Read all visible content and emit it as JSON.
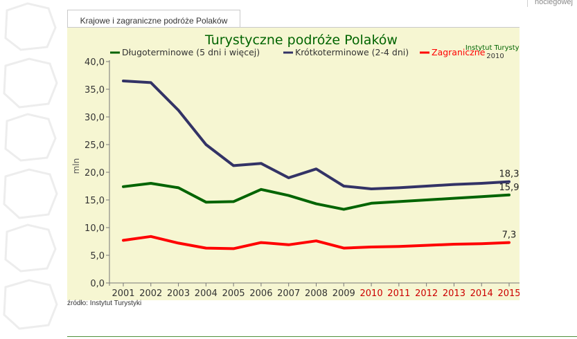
{
  "page": {
    "top_right_text": "noclegowej",
    "tab_label": "Krajowe i zagraniczne podróże Polaków",
    "source_note": "źródło: Instytut Turystyki"
  },
  "chart_data": {
    "type": "line",
    "title": "Turystyczne podróże Polaków",
    "annotation": [
      "Instytut Turystyki",
      "2010"
    ],
    "xlabel": "",
    "ylabel": "mln",
    "x": [
      "2001",
      "2002",
      "2003",
      "2004",
      "2005",
      "2006",
      "2007",
      "2008",
      "2009",
      "2010",
      "2011",
      "2012",
      "2013",
      "2014",
      "2015"
    ],
    "x_highlight_from": "2010",
    "ylim": [
      0,
      40
    ],
    "yticks": [
      "0,0",
      "5,0",
      "10,0",
      "15,0",
      "20,0",
      "25,0",
      "30,0",
      "35,0",
      "40,0"
    ],
    "ytick_values": [
      0,
      5,
      10,
      15,
      20,
      25,
      30,
      35,
      40
    ],
    "grid": false,
    "legend_position": "top",
    "series": [
      {
        "name": "Długoterminowe (5 dni i więcej)",
        "color": "#006400",
        "values": [
          17.4,
          18.0,
          17.2,
          14.6,
          14.7,
          16.9,
          15.8,
          14.3,
          13.3,
          14.4,
          14.7,
          15.0,
          15.3,
          15.6,
          15.9
        ],
        "end_label": "15,9"
      },
      {
        "name": "Krótkoterminowe (2-4 dni)",
        "color": "#333366",
        "values": [
          36.5,
          36.2,
          31.2,
          25.0,
          21.2,
          21.6,
          19.0,
          20.6,
          17.5,
          17.0,
          17.2,
          17.5,
          17.8,
          18.0,
          18.3
        ],
        "end_label": "18,3"
      },
      {
        "name": "Zagraniczne",
        "color": "#ff0000",
        "values": [
          7.7,
          8.4,
          7.2,
          6.3,
          6.2,
          7.3,
          6.9,
          7.6,
          6.3,
          6.5,
          6.6,
          6.8,
          7.0,
          7.1,
          7.3
        ],
        "end_label": "7,3"
      }
    ],
    "colors": {
      "plot_bg": "#f6f6d2",
      "axis": "#777777",
      "title": "#006400",
      "highlight_year": "#cc0000",
      "tick_text": "#333333"
    }
  }
}
